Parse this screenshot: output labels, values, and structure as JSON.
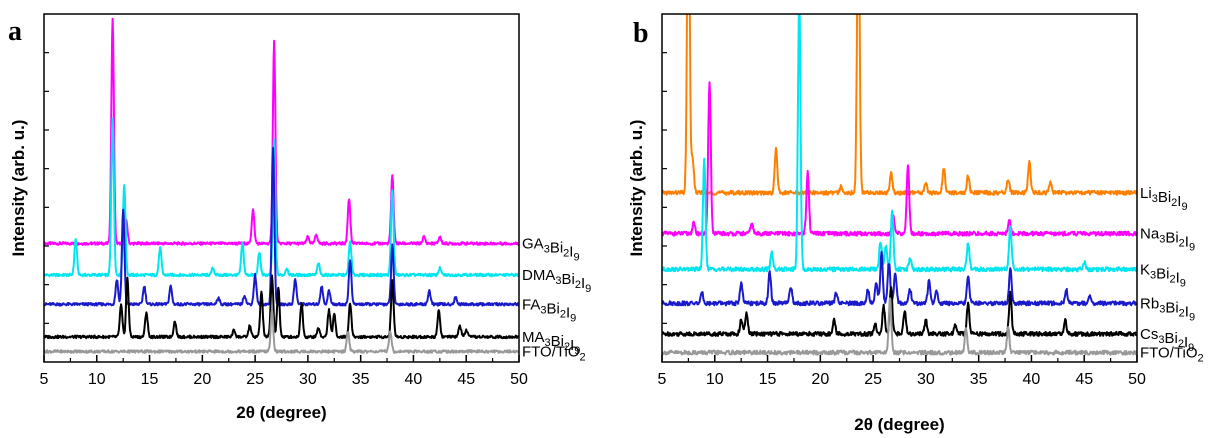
{
  "chart_data": [
    {
      "type": "line",
      "panel_label": "a",
      "xlabel": "2θ (degree)",
      "ylabel": "Intensity (arb. u.)",
      "xlim": [
        5,
        50
      ],
      "xticks": [
        "5",
        "10",
        "15",
        "20",
        "25",
        "30",
        "35",
        "40",
        "45",
        "50"
      ],
      "grid": false,
      "series": [
        {
          "name": "GA₃Bi₂I₉",
          "color": "#ff00ff",
          "baseline": 5,
          "peaks": [
            [
              11.5,
              10
            ],
            [
              12.8,
              1.0
            ],
            [
              24.8,
              1.5
            ],
            [
              26.8,
              9
            ],
            [
              30.0,
              0.3
            ],
            [
              30.8,
              0.4
            ],
            [
              33.9,
              2.0
            ],
            [
              38.0,
              3.0
            ],
            [
              41.0,
              0.3
            ],
            [
              42.5,
              0.3
            ]
          ]
        },
        {
          "name": "DMA₃Bi₂I₉",
          "color": "#00e5ee",
          "baseline": 3.6,
          "peaks": [
            [
              8.0,
              1.6
            ],
            [
              11.5,
              7
            ],
            [
              12.6,
              4
            ],
            [
              16.0,
              1.2
            ],
            [
              21.0,
              0.3
            ],
            [
              23.8,
              1.4
            ],
            [
              25.4,
              1.0
            ],
            [
              26.8,
              6
            ],
            [
              28.0,
              0.3
            ],
            [
              31.0,
              0.5
            ],
            [
              34.0,
              1.5
            ],
            [
              38.0,
              3.8
            ],
            [
              42.5,
              0.3
            ]
          ]
        },
        {
          "name": "FA₃Bi₂I₉",
          "color": "#1a1acc",
          "baseline": 2.3,
          "peaks": [
            [
              11.9,
              1.1
            ],
            [
              12.5,
              4.2
            ],
            [
              14.5,
              0.8
            ],
            [
              17.0,
              0.8
            ],
            [
              21.5,
              0.3
            ],
            [
              24.0,
              0.4
            ],
            [
              25.0,
              1.3
            ],
            [
              26.7,
              7
            ],
            [
              28.8,
              1.1
            ],
            [
              31.3,
              0.8
            ],
            [
              32.0,
              0.6
            ],
            [
              34.0,
              2.0
            ],
            [
              38.0,
              2.6
            ],
            [
              41.5,
              0.6
            ],
            [
              44.0,
              0.3
            ]
          ]
        },
        {
          "name": "MA₃Bi₂I₉",
          "color": "#000000",
          "baseline": 0.85,
          "peaks": [
            [
              12.3,
              1.4
            ],
            [
              12.9,
              2.6
            ],
            [
              14.7,
              1.1
            ],
            [
              17.4,
              0.7
            ],
            [
              23.0,
              0.3
            ],
            [
              24.5,
              0.5
            ],
            [
              25.6,
              2.0
            ],
            [
              26.6,
              2.7
            ],
            [
              27.2,
              2.2
            ],
            [
              29.4,
              1.5
            ],
            [
              31.0,
              0.4
            ],
            [
              32.0,
              1.2
            ],
            [
              32.5,
              1.0
            ],
            [
              34.0,
              1.5
            ],
            [
              38.0,
              2.5
            ],
            [
              42.4,
              1.2
            ],
            [
              44.4,
              0.5
            ],
            [
              45.0,
              0.3
            ]
          ]
        },
        {
          "name": "FTO/TiO₂",
          "color": "#999999",
          "baseline": 0.2,
          "peaks": [
            [
              26.6,
              1.8
            ],
            [
              33.8,
              0.9
            ],
            [
              37.8,
              0.9
            ]
          ]
        }
      ]
    },
    {
      "type": "line",
      "panel_label": "b",
      "xlabel": "2θ (degree)",
      "ylabel": "Intensity (arb. u.)",
      "xlim": [
        5,
        50
      ],
      "xticks": [
        "5",
        "10",
        "15",
        "20",
        "25",
        "30",
        "35",
        "40",
        "45",
        "50"
      ],
      "grid": false,
      "series": [
        {
          "name": "Li₃Bi₂I₉",
          "color": "#ff8000",
          "baseline": 4.8,
          "peaks": [
            [
              7.5,
              10
            ],
            [
              7.9,
              1.0
            ],
            [
              15.8,
              1.3
            ],
            [
              22.0,
              0.2
            ],
            [
              23.6,
              9
            ],
            [
              26.7,
              0.6
            ],
            [
              30.0,
              0.3
            ],
            [
              31.7,
              0.7
            ],
            [
              34.0,
              0.5
            ],
            [
              37.8,
              0.4
            ],
            [
              39.8,
              0.9
            ],
            [
              41.8,
              0.3
            ]
          ]
        },
        {
          "name": "Na₃Bi₂I₉",
          "color": "#ff00ff",
          "baseline": 3.6,
          "peaks": [
            [
              8.0,
              0.3
            ],
            [
              9.5,
              4.5
            ],
            [
              13.5,
              0.3
            ],
            [
              18.8,
              1.8
            ],
            [
              26.9,
              0.5
            ],
            [
              28.3,
              2.0
            ],
            [
              37.9,
              0.4
            ]
          ]
        },
        {
          "name": "K₃Bi₂I₉",
          "color": "#00e5ee",
          "baseline": 2.55,
          "peaks": [
            [
              9.0,
              3.2
            ],
            [
              15.4,
              0.5
            ],
            [
              18.0,
              8
            ],
            [
              25.7,
              0.8
            ],
            [
              26.2,
              0.7
            ],
            [
              26.8,
              1.7
            ],
            [
              28.5,
              0.3
            ],
            [
              34.0,
              0.8
            ],
            [
              38.0,
              1.3
            ],
            [
              45.0,
              0.2
            ]
          ]
        },
        {
          "name": "Rb₃Bi₂I₉",
          "color": "#1a1acc",
          "baseline": 1.55,
          "peaks": [
            [
              8.8,
              0.3
            ],
            [
              12.5,
              0.6
            ],
            [
              15.2,
              0.9
            ],
            [
              17.2,
              0.5
            ],
            [
              21.5,
              0.3
            ],
            [
              24.5,
              0.4
            ],
            [
              25.3,
              0.6
            ],
            [
              25.8,
              1.5
            ],
            [
              26.5,
              1.2
            ],
            [
              27.1,
              0.9
            ],
            [
              28.5,
              0.4
            ],
            [
              30.3,
              0.7
            ],
            [
              31.0,
              0.4
            ],
            [
              34.0,
              0.8
            ],
            [
              38.0,
              1.0
            ],
            [
              43.3,
              0.4
            ],
            [
              45.5,
              0.2
            ]
          ]
        },
        {
          "name": "Cs₃Bi₂I₉",
          "color": "#000000",
          "baseline": 0.65,
          "peaks": [
            [
              12.5,
              0.4
            ],
            [
              13.0,
              0.6
            ],
            [
              21.3,
              0.4
            ],
            [
              25.2,
              0.3
            ],
            [
              26.0,
              0.8
            ],
            [
              26.7,
              1.4
            ],
            [
              28.0,
              0.7
            ],
            [
              30.0,
              0.4
            ],
            [
              32.8,
              0.3
            ],
            [
              34.0,
              0.9
            ],
            [
              38.0,
              1.2
            ],
            [
              43.2,
              0.4
            ]
          ]
        },
        {
          "name": "FTO/TiO₂",
          "color": "#999999",
          "baseline": 0.1,
          "peaks": [
            [
              26.6,
              1.6
            ],
            [
              33.8,
              0.7
            ],
            [
              37.8,
              0.7
            ]
          ]
        }
      ]
    }
  ]
}
